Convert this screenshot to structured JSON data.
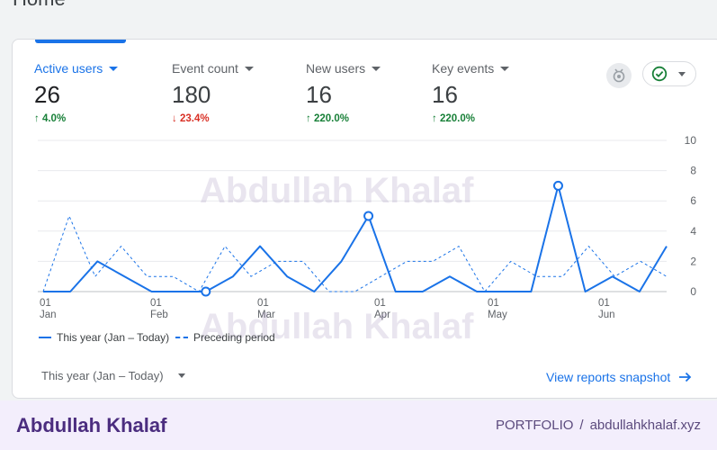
{
  "page": {
    "title": "Home"
  },
  "metrics": [
    {
      "label": "Active users",
      "value": "26",
      "change": "4.0%",
      "direction": "up"
    },
    {
      "label": "Event count",
      "value": "180",
      "change": "23.4%",
      "direction": "down"
    },
    {
      "label": "New users",
      "value": "16",
      "change": "220.0%",
      "direction": "up"
    },
    {
      "label": "Key events",
      "value": "16",
      "change": "220.0%",
      "direction": "up"
    }
  ],
  "icons": {
    "insights": "insights-badge-icon",
    "compare": "check-circle-icon"
  },
  "colors": {
    "accent": "#1a73e8",
    "up": "#188038",
    "down": "#d93025",
    "brand": "#4b2d7f"
  },
  "chart_data": {
    "type": "line",
    "x_ticks": [
      {
        "day": "01",
        "month": "Jan"
      },
      {
        "day": "01",
        "month": "Feb"
      },
      {
        "day": "01",
        "month": "Mar"
      },
      {
        "day": "01",
        "month": "Apr"
      },
      {
        "day": "01",
        "month": "May"
      },
      {
        "day": "01",
        "month": "Jun"
      }
    ],
    "y_ticks": [
      "0",
      "2",
      "4",
      "6",
      "8",
      "10"
    ],
    "ylim": [
      0,
      10
    ],
    "series": [
      {
        "name": "This year (Jan – Today)",
        "style": "solid",
        "values": [
          0,
          0,
          2,
          1,
          0,
          0,
          0,
          1,
          3,
          1,
          0,
          2,
          5,
          0,
          0,
          1,
          0,
          0,
          0,
          7,
          0,
          1,
          0,
          3
        ],
        "markers": [
          6,
          12,
          19
        ]
      },
      {
        "name": "Preceding period",
        "style": "dashed",
        "values": [
          0,
          5,
          1,
          3,
          1,
          1,
          0,
          3,
          1,
          2,
          2,
          0,
          0,
          1,
          2,
          2,
          3,
          0,
          2,
          1,
          1,
          3,
          1,
          2,
          1
        ]
      }
    ]
  },
  "watermark": "Abdullah Khalaf",
  "controls": {
    "date_range": "This year (Jan – Today)",
    "snapshot_link": "View reports snapshot"
  },
  "footer": {
    "brand": "Abdullah Khalaf",
    "label": "PORTFOLIO",
    "separator": "/",
    "site": "abdullahkhalaf.xyz"
  }
}
